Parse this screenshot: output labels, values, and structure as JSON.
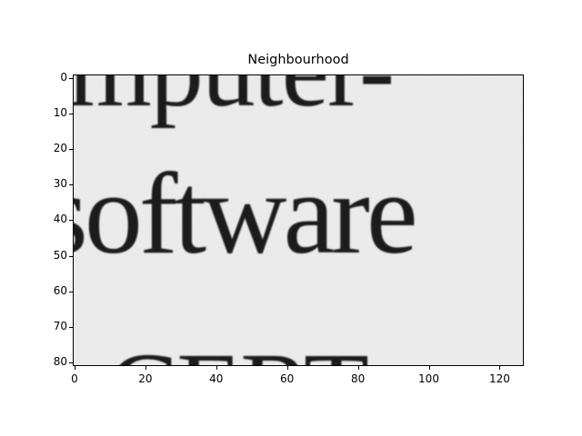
{
  "figure": {
    "title": "Neighbourhood"
  },
  "image": {
    "text_lines": [
      "mputer-",
      "software",
      "o CERT"
    ]
  },
  "axes": {
    "x_ticks": [
      "0",
      "20",
      "40",
      "60",
      "80",
      "100",
      "120"
    ],
    "y_ticks": [
      "0",
      "10",
      "20",
      "30",
      "40",
      "50",
      "60",
      "70",
      "80"
    ]
  }
}
